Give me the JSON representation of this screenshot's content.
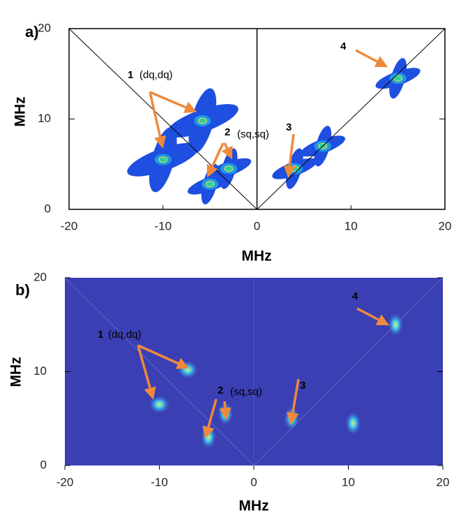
{
  "chart_data": [
    {
      "type": "contour",
      "panel": "a)",
      "xlabel": "MHz",
      "ylabel": "MHz",
      "xlim": [
        -20,
        20
      ],
      "ylim": [
        0,
        20
      ],
      "xticks": [
        -20,
        -10,
        0,
        10,
        20
      ],
      "yticks": [
        0,
        10,
        20
      ],
      "x": [
        -10,
        -5.8,
        -3,
        -5,
        4,
        7,
        15
      ],
      "values": [
        5.5,
        9.8,
        4.5,
        2.8,
        4.5,
        7,
        14.5
      ],
      "color": "#1f4fe0",
      "annotations": [
        "1",
        "(dq,dq)",
        "2",
        "(sq,sq)",
        "3",
        "4"
      ]
    },
    {
      "type": "heatmap",
      "panel": "b)",
      "xlabel": "MHz",
      "ylabel": "MHz",
      "xlim": [
        -20,
        20
      ],
      "ylim": [
        0,
        20
      ],
      "xticks": [
        -20,
        -10,
        0,
        10,
        20
      ],
      "yticks": [
        0,
        10,
        20
      ],
      "x": [
        -10,
        -7,
        -3,
        -4.8,
        4,
        10.5,
        15
      ],
      "values": [
        6.5,
        10.2,
        5.5,
        3,
        5,
        4.5,
        15
      ],
      "color": "#3a3fb4",
      "annotations": [
        "1",
        "(dq,dq)",
        "2",
        "(sq,sq)",
        "3",
        "4"
      ]
    }
  ]
}
